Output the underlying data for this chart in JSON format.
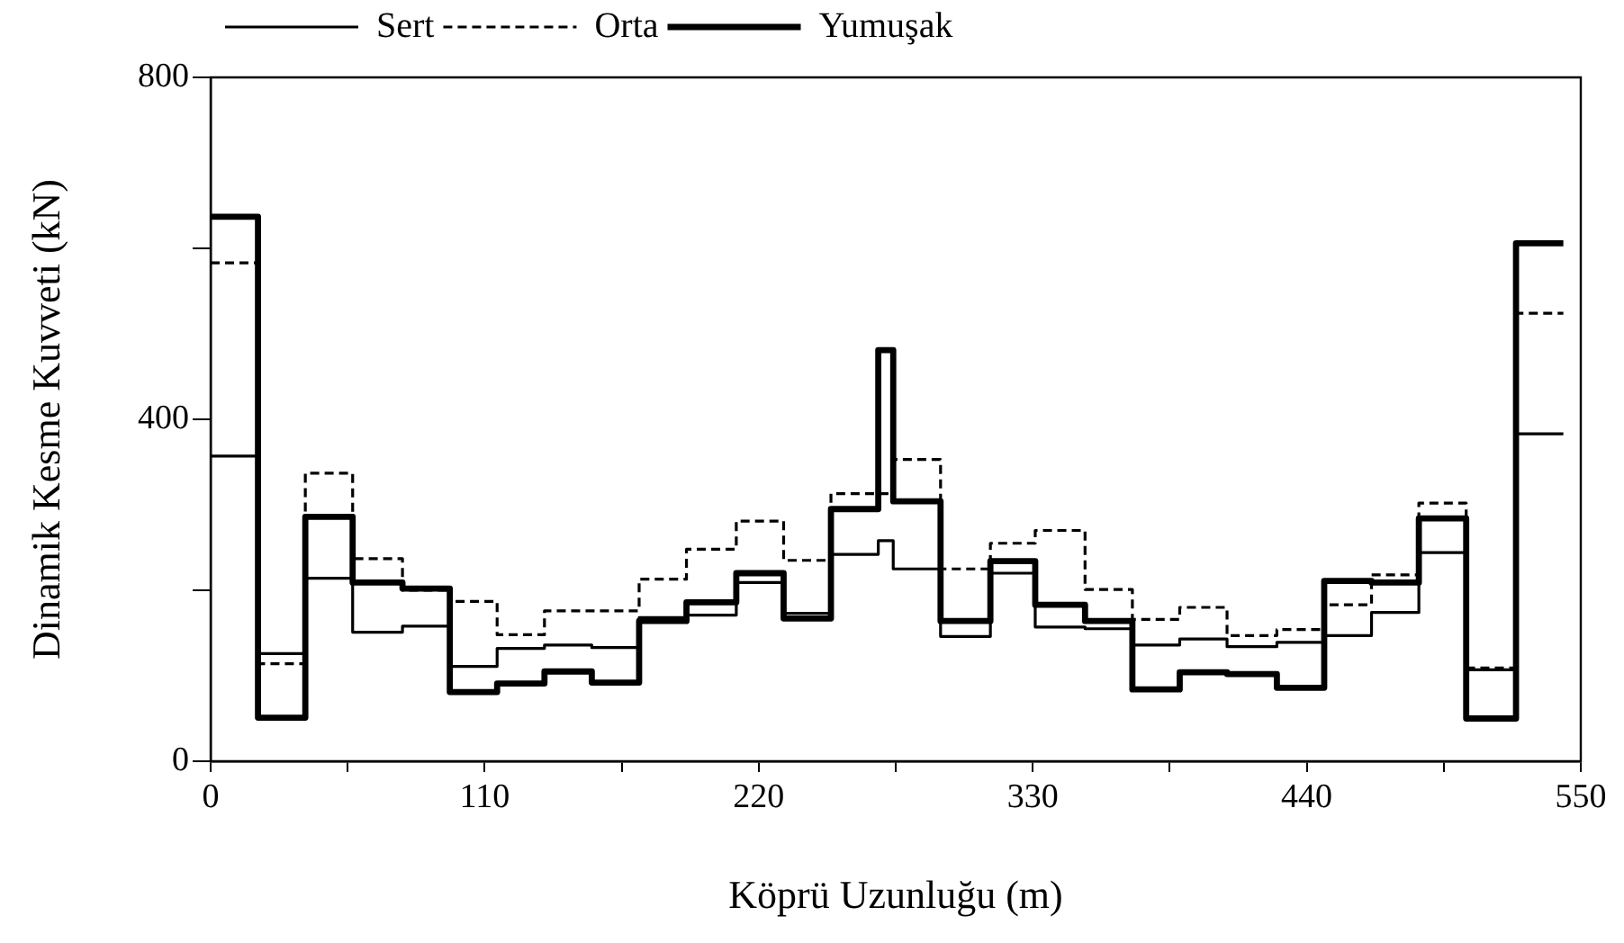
{
  "chart_data": {
    "type": "step",
    "xlabel": "Köprü Uzunluğu (m)",
    "ylabel": "Dinamik Kesme Kuvveti (kN)",
    "x": [
      0,
      19,
      38,
      57,
      77,
      96,
      115,
      134,
      153,
      172,
      191,
      211,
      230,
      249,
      268,
      274,
      293,
      313,
      331,
      351,
      370,
      389,
      408,
      428,
      447,
      466,
      485,
      504,
      524,
      543
    ],
    "series": [
      {
        "name": "Sert",
        "color": "#000000",
        "line_style": "solid",
        "values": [
          357,
          126,
          214,
          151,
          158,
          111,
          132,
          136,
          133,
          168,
          171,
          209,
          173,
          242,
          258,
          225,
          146,
          220,
          157,
          155,
          136,
          143,
          134,
          139,
          147,
          174,
          244,
          107,
          383,
          383
        ]
      },
      {
        "name": "Orta",
        "color": "#000000",
        "line_style": "dashed",
        "values": [
          583,
          114,
          337,
          237,
          200,
          187,
          148,
          176,
          176,
          213,
          248,
          281,
          235,
          313,
          313,
          353,
          225,
          255,
          270,
          201,
          166,
          180,
          147,
          154,
          183,
          218,
          302,
          109,
          524,
          524
        ]
      },
      {
        "name": "Yumuşak",
        "color": "#000000",
        "line_style": "solid",
        "values": [
          637,
          51,
          286,
          209,
          202,
          81,
          91,
          105,
          92,
          164,
          186,
          220,
          167,
          295,
          481,
          304,
          164,
          234,
          183,
          164,
          84,
          104,
          102,
          86,
          211,
          209,
          284,
          50,
          606,
          606
        ]
      }
    ],
    "xlim": [
      0,
      550
    ],
    "xticks": [
      0,
      {
        "value": 55,
        "label": null
      },
      110,
      {
        "value": 165,
        "label": null
      },
      220,
      {
        "value": 275,
        "label": null
      },
      330,
      {
        "value": 385,
        "label": null
      },
      440,
      {
        "value": 495,
        "label": null
      },
      550
    ],
    "ylim": [
      0,
      800
    ],
    "yticks": [
      0,
      {
        "value": 200,
        "label": null
      },
      400,
      {
        "value": 600,
        "label": null
      },
      800
    ],
    "legend": "top left",
    "marker": "none"
  }
}
